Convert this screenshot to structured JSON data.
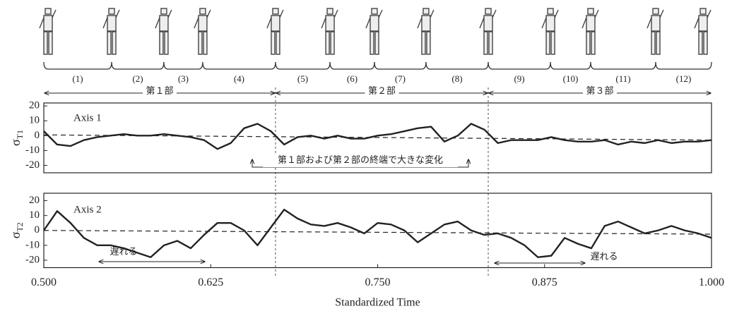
{
  "chart_data": [
    {
      "type": "line",
      "annotation": "Axis 1",
      "ylabel": {
        "symbol": "σ",
        "subscript": "T1"
      },
      "note": "第１部および第２部の終端で大きな変化",
      "xlim": [
        0.5,
        1.0
      ],
      "ylim": [
        -25,
        22
      ],
      "yticks": [
        20,
        10,
        0,
        -10,
        -20
      ],
      "x": [
        0.5,
        0.51,
        0.52,
        0.53,
        0.54,
        0.55,
        0.56,
        0.57,
        0.58,
        0.59,
        0.6,
        0.61,
        0.62,
        0.63,
        0.64,
        0.65,
        0.66,
        0.67,
        0.68,
        0.69,
        0.7,
        0.71,
        0.72,
        0.73,
        0.74,
        0.75,
        0.76,
        0.77,
        0.78,
        0.79,
        0.8,
        0.81,
        0.82,
        0.83,
        0.84,
        0.85,
        0.86,
        0.87,
        0.88,
        0.89,
        0.9,
        0.91,
        0.92,
        0.93,
        0.94,
        0.95,
        0.96,
        0.97,
        0.98,
        0.99,
        1.0
      ],
      "series": [
        {
          "color": "#222",
          "values": [
            3,
            -6,
            -7,
            -3,
            -1,
            0,
            1,
            0,
            0,
            1,
            0,
            -1,
            -3,
            -9,
            -5,
            5,
            8,
            3,
            -6,
            -1,
            0,
            -2,
            0,
            -2,
            -2,
            0,
            1,
            3,
            5,
            6,
            -4,
            0,
            8,
            4,
            -5,
            -3,
            -3,
            -3,
            -1,
            -3,
            -4,
            -4,
            -3,
            -6,
            -4,
            -5,
            -3,
            -5,
            -4,
            -4,
            -3
          ]
        }
      ],
      "reference_line": {
        "x": [
          0.5,
          1.0
        ],
        "values": [
          0.5,
          -3
        ]
      }
    },
    {
      "type": "line",
      "annotation": "Axis 2",
      "ylabel": {
        "symbol": "σ",
        "subscript": "T2"
      },
      "notes": [
        "遅れる",
        "遅れる"
      ],
      "xlabel": "Standardized Time",
      "xlim": [
        0.5,
        1.0
      ],
      "ylim": [
        -25,
        25
      ],
      "yticks": [
        20,
        10,
        0,
        -10,
        -20
      ],
      "xticks": [
        {
          "value": 0.5,
          "label": "0.500"
        },
        {
          "value": 0.625,
          "label": "0.625"
        },
        {
          "value": 0.75,
          "label": "0.750"
        },
        {
          "value": 0.875,
          "label": "0.875"
        },
        {
          "value": 1.0,
          "label": "1.000"
        }
      ],
      "x": [
        0.5,
        0.51,
        0.52,
        0.53,
        0.54,
        0.55,
        0.56,
        0.57,
        0.58,
        0.59,
        0.6,
        0.61,
        0.62,
        0.63,
        0.64,
        0.65,
        0.66,
        0.67,
        0.68,
        0.69,
        0.7,
        0.71,
        0.72,
        0.73,
        0.74,
        0.75,
        0.76,
        0.77,
        0.78,
        0.79,
        0.8,
        0.81,
        0.82,
        0.83,
        0.84,
        0.85,
        0.86,
        0.87,
        0.88,
        0.89,
        0.9,
        0.91,
        0.92,
        0.93,
        0.94,
        0.95,
        0.96,
        0.97,
        0.98,
        0.99,
        1.0
      ],
      "series": [
        {
          "color": "#222",
          "values": [
            0,
            13,
            5,
            -5,
            -10,
            -10,
            -12,
            -15,
            -18,
            -10,
            -7,
            -12,
            -3,
            5,
            5,
            0,
            -10,
            2,
            14,
            8,
            4,
            3,
            5,
            2,
            -2,
            5,
            4,
            0,
            -8,
            -2,
            4,
            6,
            0,
            -3,
            -2,
            -5,
            -10,
            -18,
            -17,
            -5,
            -9,
            -12,
            3,
            6,
            2,
            -2,
            0,
            3,
            0,
            -2,
            -5
          ]
        }
      ],
      "reference_line": {
        "x": [
          0.5,
          1.0
        ],
        "values": [
          0,
          -2.5
        ]
      }
    }
  ],
  "segments": [
    {
      "label": "(1)",
      "start": 0.5,
      "end": 0.5508
    },
    {
      "label": "(2)",
      "start": 0.5508,
      "end": 0.5899
    },
    {
      "label": "(3)",
      "start": 0.5899,
      "end": 0.619
    },
    {
      "label": "(4)",
      "start": 0.619,
      "end": 0.6735
    },
    {
      "label": "(5)",
      "start": 0.6735,
      "end": 0.7143
    },
    {
      "label": "(6)",
      "start": 0.7143,
      "end": 0.7476
    },
    {
      "label": "(7)",
      "start": 0.7476,
      "end": 0.7862
    },
    {
      "label": "(8)",
      "start": 0.7862,
      "end": 0.8328
    },
    {
      "label": "(9)",
      "start": 0.8328,
      "end": 0.8794
    },
    {
      "label": "(10)",
      "start": 0.8794,
      "end": 0.9095
    },
    {
      "label": "(11)",
      "start": 0.9095,
      "end": 0.9582
    },
    {
      "label": "(12)",
      "start": 0.9582,
      "end": 1.0
    }
  ],
  "parts": [
    {
      "label": "第１部",
      "start": 0.5,
      "end": 0.6735
    },
    {
      "label": "第２部",
      "start": 0.6735,
      "end": 0.8328
    },
    {
      "label": "第３部",
      "start": 0.8328,
      "end": 1.0
    }
  ]
}
